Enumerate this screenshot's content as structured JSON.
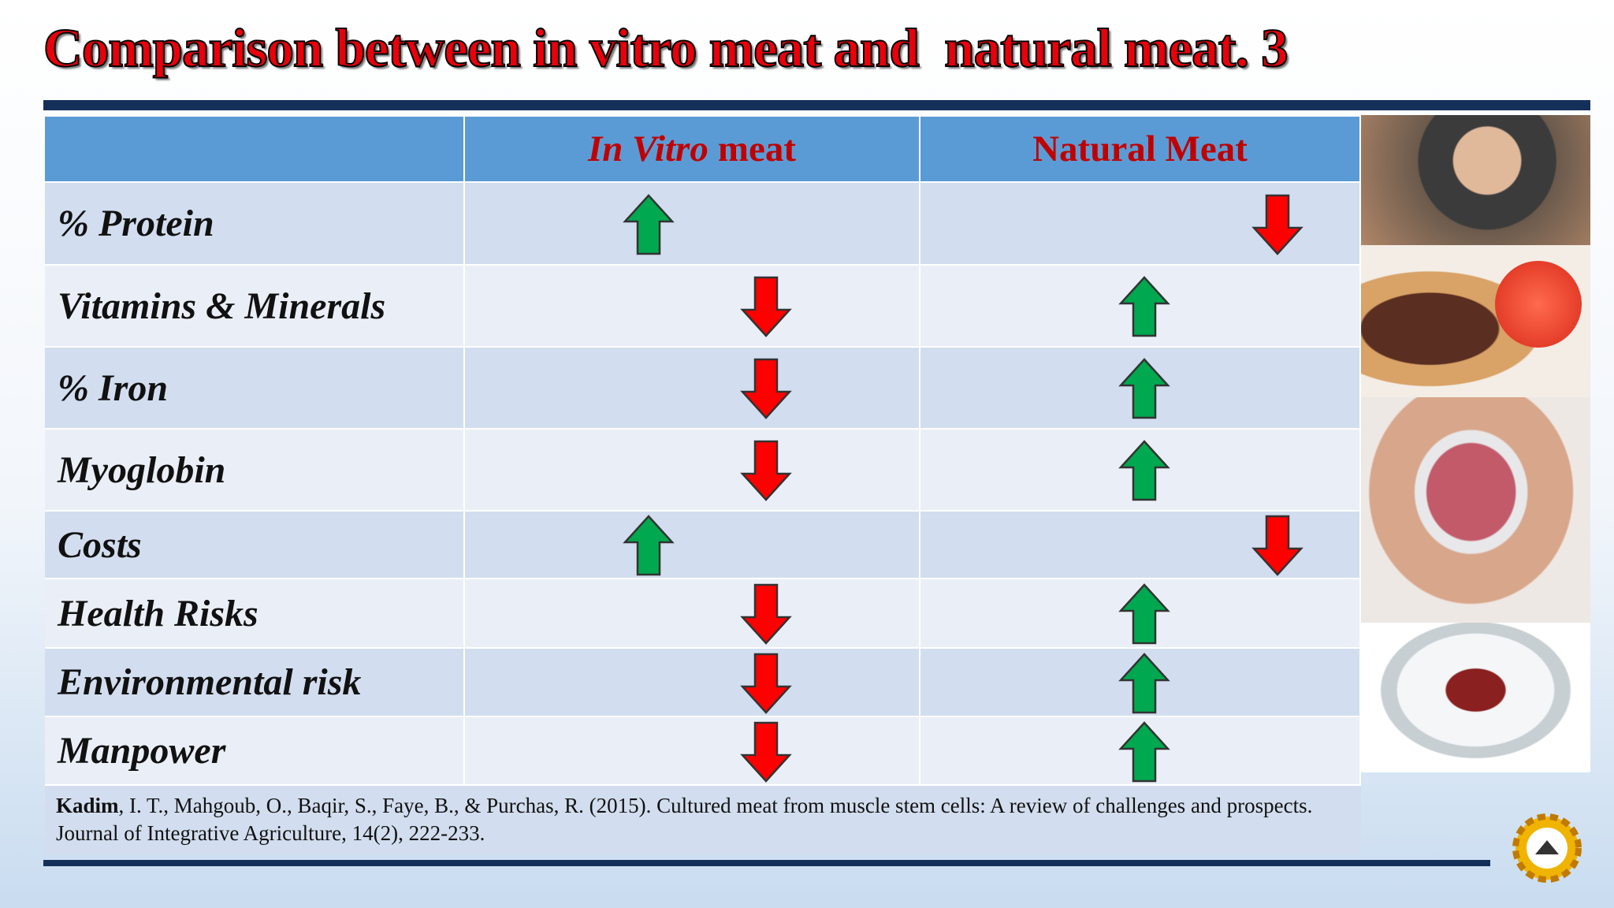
{
  "title": "Comparison between in vitro meat and  natural meat. 3",
  "table": {
    "header": [
      {
        "italic": "In Vitro",
        "rest": "meat"
      },
      "Natural Meat"
    ],
    "rows": [
      "% Protein",
      "Vitamins & Minerals",
      "% Iron",
      "Myoglobin",
      "Costs",
      "Health Risks",
      "Environmental risk",
      "Manpower"
    ]
  },
  "citation": {
    "author": "Kadim",
    "text": ", I. T., Mahgoub, O., Baqir, S., Faye, B., & Purchas, R. (2015). Cultured meat from muscle stem cells: A review of challenges and prospects. Journal of Integrative Agriculture, 14(2), 222-233."
  }
}
